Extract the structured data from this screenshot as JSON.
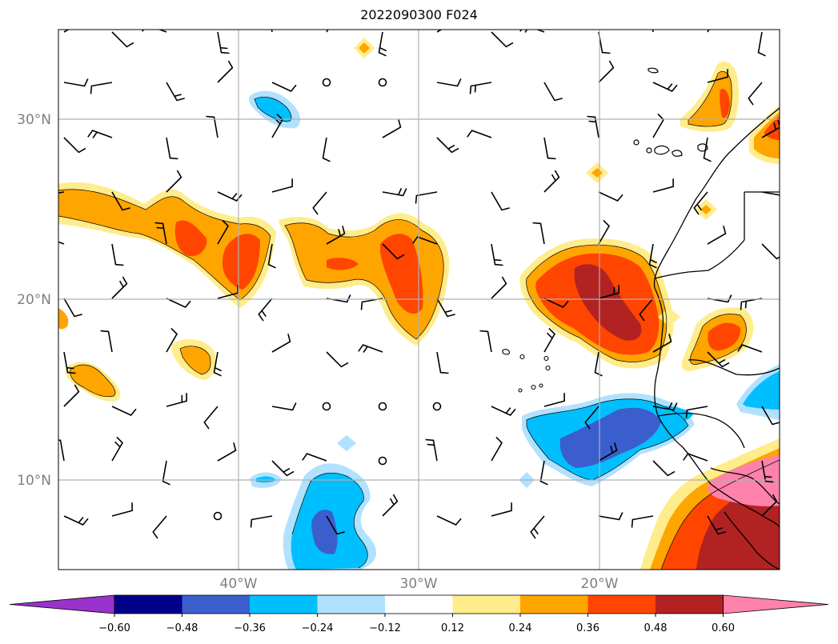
{
  "title": "2022090300 F024",
  "map": {
    "lon_range": [
      -50,
      -10
    ],
    "lat_range": [
      5,
      35
    ],
    "lat_ticks": [
      {
        "value": 30,
        "label": "30°N"
      },
      {
        "value": 20,
        "label": "20°N"
      },
      {
        "value": 10,
        "label": "10°N"
      }
    ],
    "lon_ticks": [
      {
        "value": -40,
        "label": "40°W"
      },
      {
        "value": -30,
        "label": "30°W"
      },
      {
        "value": -20,
        "label": "20°W"
      }
    ],
    "gridlines": true
  },
  "colorbar": {
    "orientation": "horizontal",
    "extend": "both",
    "levels": [
      -0.6,
      -0.48,
      -0.36,
      -0.24,
      -0.12,
      0.12,
      0.24,
      0.36,
      0.48,
      0.6
    ],
    "tick_labels": [
      "−0.60",
      "−0.48",
      "−0.36",
      "−0.24",
      "−0.12",
      "0.12",
      "0.24",
      "0.36",
      "0.48",
      "0.60"
    ],
    "colors": [
      "#9933cc",
      "#00008b",
      "#3a5fcd",
      "#00bfff",
      "#b0e2ff",
      "#ffffff",
      "#ffec8b",
      "#ffa500",
      "#ff4500",
      "#b22222",
      "#ff82ab"
    ]
  }
}
